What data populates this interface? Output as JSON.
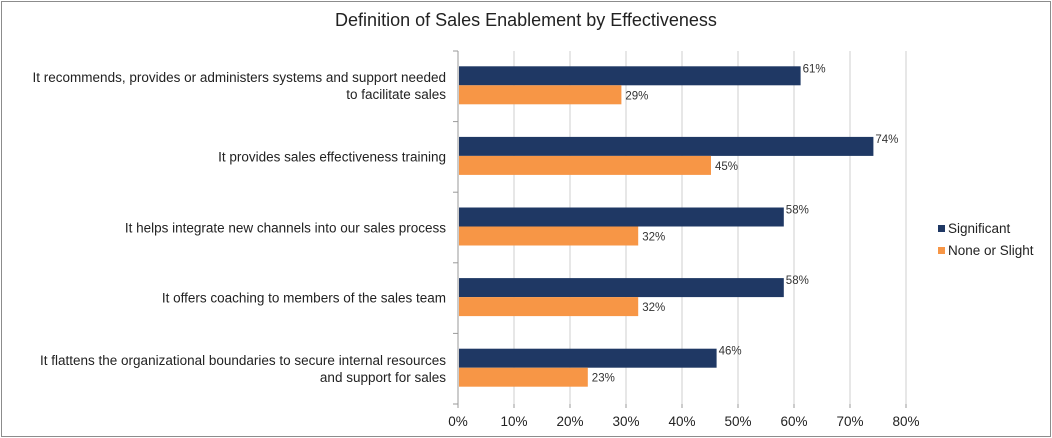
{
  "chart_data": {
    "type": "bar",
    "orientation": "horizontal",
    "title": "Definition of Sales Enablement by Effectiveness",
    "categories": [
      "It recommends, provides or administers systems and support needed to facilitate sales",
      "It provides sales effectiveness training",
      "It helps integrate new channels into our sales process",
      "It offers coaching to members of the sales team",
      "It flattens the organizational boundaries to secure internal resources and support for sales"
    ],
    "category_lines": [
      [
        "It recommends, provides or administers systems and support needed",
        "to facilitate sales"
      ],
      [
        "It provides sales effectiveness training"
      ],
      [
        "It helps integrate new channels into our sales process"
      ],
      [
        "It offers coaching to members of the sales team"
      ],
      [
        "It flattens the organizational boundaries to secure internal resources",
        "and support for sales"
      ]
    ],
    "series": [
      {
        "name": "Significant",
        "color": "#1f3864",
        "values": [
          61,
          74,
          58,
          58,
          46
        ],
        "labels": [
          "61%",
          "74%",
          "58%",
          "58%",
          "46%"
        ]
      },
      {
        "name": "None or Slight",
        "color": "#f79646",
        "values": [
          29,
          45,
          32,
          32,
          23
        ],
        "labels": [
          "29%",
          "45%",
          "32%",
          "32%",
          "23%"
        ]
      }
    ],
    "xlim": [
      0,
      80
    ],
    "xticks": [
      "0%",
      "10%",
      "20%",
      "30%",
      "40%",
      "50%",
      "60%",
      "70%",
      "80%"
    ],
    "grid": true,
    "legend_position": "right"
  }
}
